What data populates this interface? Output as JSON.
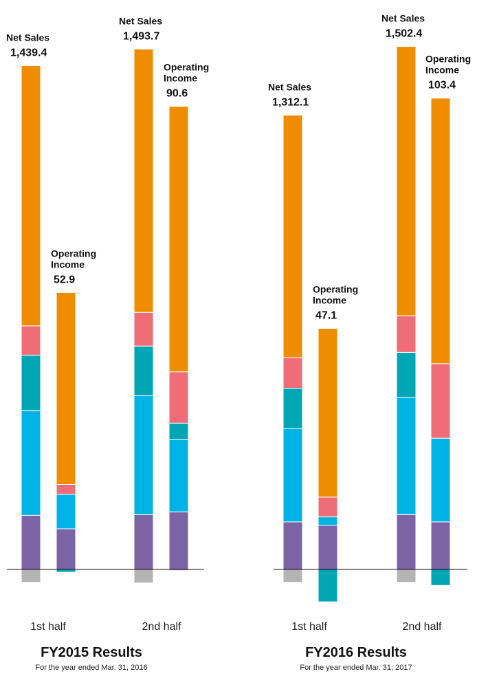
{
  "chart_data": {
    "type": "bar",
    "stacked": true,
    "segment_colors": {
      "purple": "#7c63a4",
      "blue": "#00b3e6",
      "teal": "#00a6b3",
      "pink": "#ee6d77",
      "orange": "#f08c00",
      "gray": "#b4b4b4"
    },
    "groups": [
      {
        "title": "FY2015 Results",
        "subtitle": "For the year ended Mar. 31, 2016",
        "halves": [
          {
            "label": "1st half",
            "bars": [
              {
                "name_lines": [
                  "Net Sales"
                ],
                "value": "1,439.4",
                "segments_positive": [
                  {
                    "color": "purple",
                    "value": 172
                  },
                  {
                    "color": "blue",
                    "value": 334
                  },
                  {
                    "color": "teal",
                    "value": 175
                  },
                  {
                    "color": "pink",
                    "value": 93
                  },
                  {
                    "color": "orange",
                    "value": 827
                  }
                ],
                "segments_negative": [
                  {
                    "color": "gray",
                    "value": 41
                  }
                ]
              },
              {
                "name_lines": [
                  "Operating",
                  "Income"
                ],
                "value": "52.9",
                "segments_positive": [
                  {
                    "color": "purple",
                    "value": 129
                  },
                  {
                    "color": "blue",
                    "value": 110
                  },
                  {
                    "color": "pink",
                    "value": 31
                  },
                  {
                    "color": "orange",
                    "value": 610
                  }
                ],
                "segments_negative": [
                  {
                    "color": "teal",
                    "value": 9
                  }
                ]
              }
            ]
          },
          {
            "label": "2nd half",
            "bars": [
              {
                "name_lines": [
                  "Net Sales"
                ],
                "value": "1,493.7",
                "segments_positive": [
                  {
                    "color": "purple",
                    "value": 174
                  },
                  {
                    "color": "blue",
                    "value": 378
                  },
                  {
                    "color": "teal",
                    "value": 158
                  },
                  {
                    "color": "pink",
                    "value": 107
                  },
                  {
                    "color": "orange",
                    "value": 837
                  }
                ],
                "segments_negative": [
                  {
                    "color": "gray",
                    "value": 43
                  }
                ]
              },
              {
                "name_lines": [
                  "Operating",
                  "Income"
                ],
                "value": "90.6",
                "segments_positive": [
                  {
                    "color": "purple",
                    "value": 183
                  },
                  {
                    "color": "blue",
                    "value": 229
                  },
                  {
                    "color": "teal",
                    "value": 53
                  },
                  {
                    "color": "pink",
                    "value": 163
                  },
                  {
                    "color": "orange",
                    "value": 844
                  }
                ],
                "segments_negative": [
                  {
                    "color": "gray",
                    "value": 4
                  }
                ]
              }
            ]
          }
        ]
      },
      {
        "title": "FY2016 Results",
        "subtitle": "For the year ended Mar. 31, 2017",
        "halves": [
          {
            "label": "1st half",
            "bars": [
              {
                "name_lines": [
                  "Net Sales"
                ],
                "value": "1,312.1",
                "segments_positive": [
                  {
                    "color": "purple",
                    "value": 151
                  },
                  {
                    "color": "blue",
                    "value": 297
                  },
                  {
                    "color": "teal",
                    "value": 128
                  },
                  {
                    "color": "pink",
                    "value": 97
                  },
                  {
                    "color": "orange",
                    "value": 771
                  }
                ],
                "segments_negative": [
                  {
                    "color": "gray",
                    "value": 41
                  }
                ]
              },
              {
                "name_lines": [
                  "Operating",
                  "Income"
                ],
                "value": "47.1",
                "segments_positive": [
                  {
                    "color": "purple",
                    "value": 140
                  },
                  {
                    "color": "blue",
                    "value": 27
                  },
                  {
                    "color": "pink",
                    "value": 63
                  },
                  {
                    "color": "orange",
                    "value": 536
                  }
                ],
                "segments_negative": [
                  {
                    "color": "teal",
                    "value": 103
                  }
                ]
              }
            ]
          },
          {
            "label": "2nd half",
            "bars": [
              {
                "name_lines": [
                  "Net Sales"
                ],
                "value": "1,502.4",
                "segments_positive": [
                  {
                    "color": "purple",
                    "value": 174
                  },
                  {
                    "color": "blue",
                    "value": 373
                  },
                  {
                    "color": "teal",
                    "value": 143
                  },
                  {
                    "color": "pink",
                    "value": 116
                  },
                  {
                    "color": "orange",
                    "value": 856
                  }
                ],
                "segments_negative": [
                  {
                    "color": "gray",
                    "value": 41
                  }
                ]
              },
              {
                "name_lines": [
                  "Operating",
                  "Income"
                ],
                "value": "103.4",
                "segments_positive": [
                  {
                    "color": "purple",
                    "value": 151
                  },
                  {
                    "color": "blue",
                    "value": 266
                  },
                  {
                    "color": "pink",
                    "value": 237
                  },
                  {
                    "color": "orange",
                    "value": 844
                  }
                ],
                "segments_negative": [
                  {
                    "color": "teal",
                    "value": 51
                  }
                ]
              }
            ]
          }
        ]
      }
    ]
  }
}
